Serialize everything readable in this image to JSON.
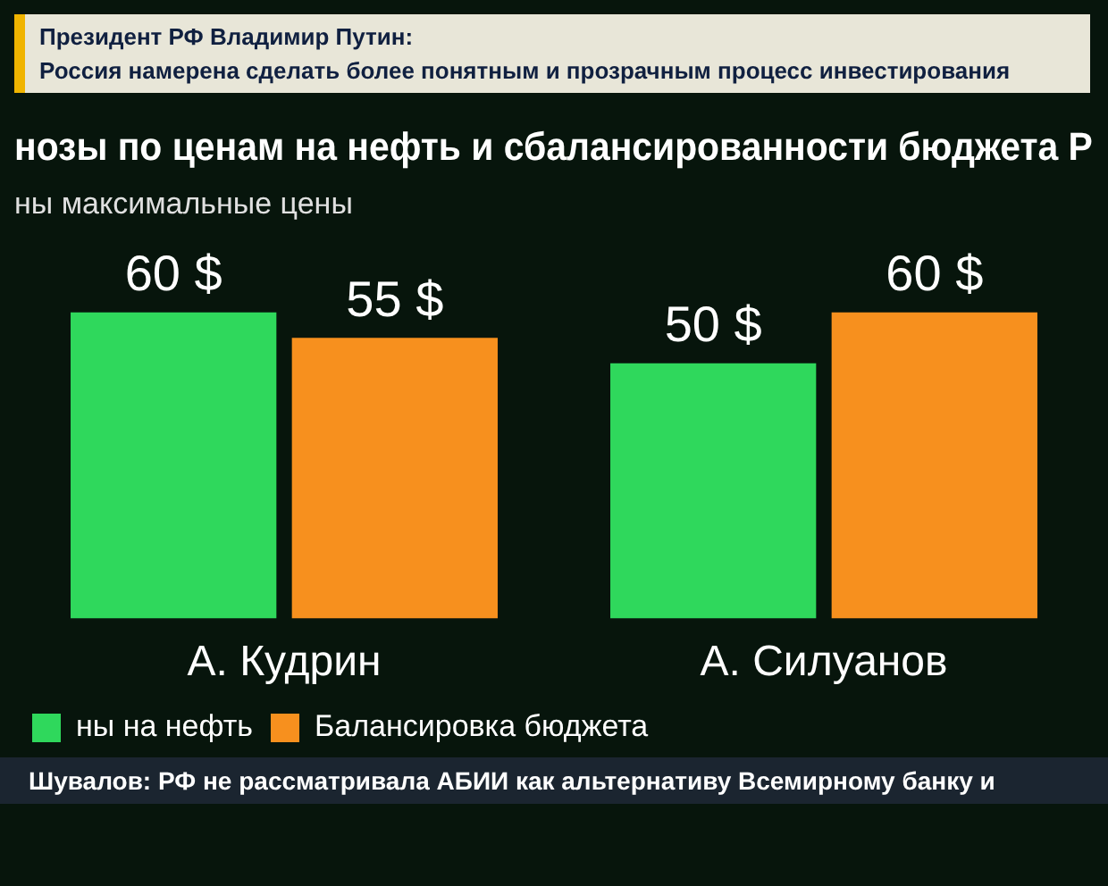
{
  "chart_data": {
    "type": "bar",
    "title": "нозы по ценам на нефть и сбалансированности бюджета Р",
    "subtitle": "ны максимальные цены",
    "categories": [
      "А. Кудрин",
      "А. Силуанов"
    ],
    "series": [
      {
        "name": "ны на нефть",
        "color": "#2fd85c",
        "values": [
          60,
          50
        ],
        "value_labels": [
          "60 $",
          "50 $"
        ]
      },
      {
        "name": "Балансировка бюджета",
        "color": "#f7901e",
        "values": [
          55,
          60
        ],
        "value_labels": [
          "55 $",
          "60 $"
        ]
      }
    ],
    "legend": "bottom left",
    "annotations": [
      "Президент РФ Владимир Путин:",
      "Россия намерена сделать более понятным и прозрачным процесс инвестирования",
      "Шувалов: РФ не рассматривала АБИИ как альтернативу Всемирному банку и"
    ]
  }
}
